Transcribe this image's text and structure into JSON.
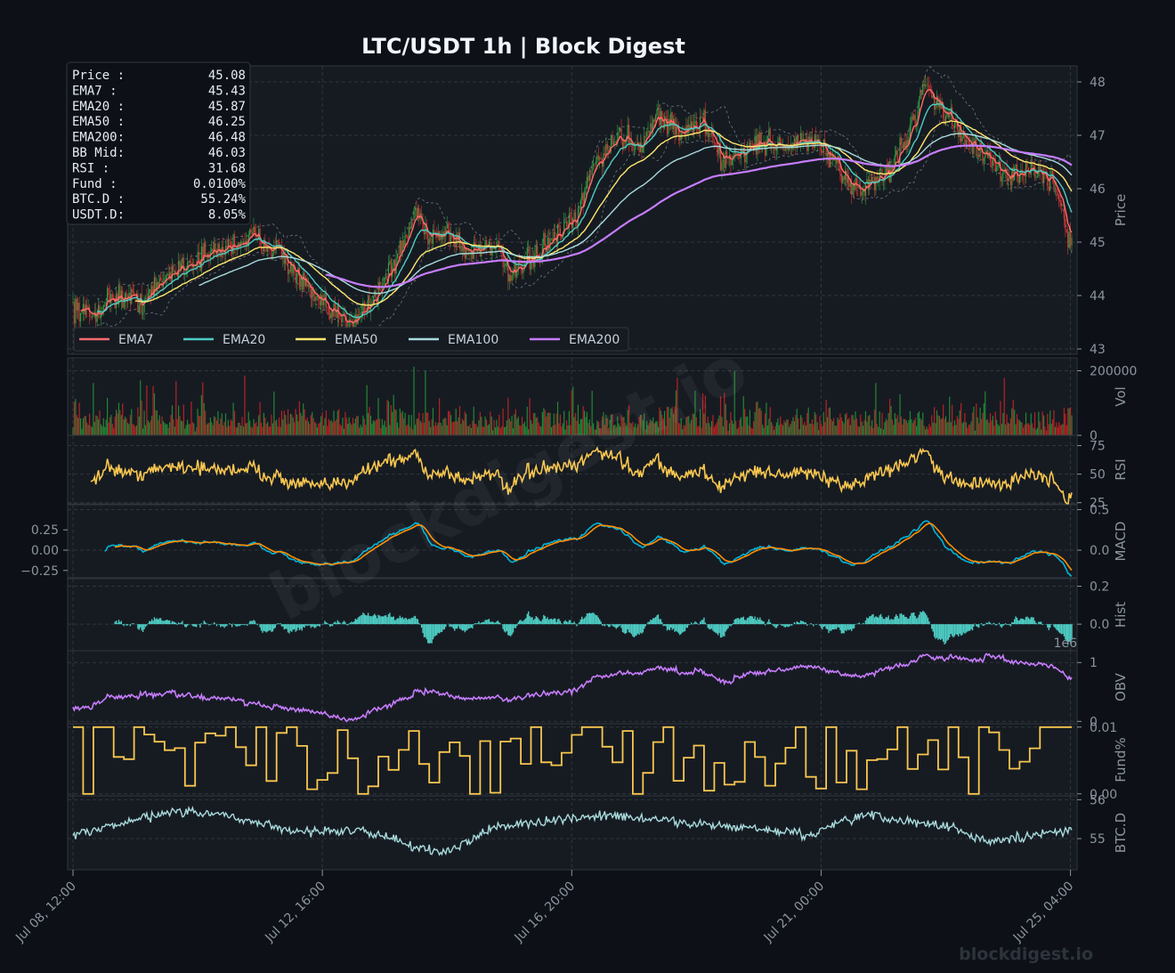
{
  "title": "LTC/USDT  1h  |  Block Digest",
  "watermark": "blockdigest.io",
  "footer_brand": "blockdigest.io",
  "colors": {
    "background": "#0d1117",
    "panel": "#161b22",
    "grid": "#30363d",
    "text": "#c9d1d9",
    "candle_up": "#2ea043",
    "candle_down": "#da3633",
    "ema7": "#ff6b6b",
    "ema20": "#4ecdc4",
    "ema50": "#ffe66d",
    "ema100": "#a8dadc",
    "ema200": "#c77dff",
    "rsi": "#f9c74f",
    "macd": "#00b4d8",
    "signal": "#ff8c00",
    "hist": "#4ecdc4",
    "obv": "#c77dff",
    "funding": "#f9c74f",
    "btcd": "#a8dadc"
  },
  "info_box": [
    {
      "label": "Price :",
      "value": "45.08"
    },
    {
      "label": "EMA7  :",
      "value": "45.43"
    },
    {
      "label": "EMA20 :",
      "value": "45.87"
    },
    {
      "label": "EMA50 :",
      "value": "46.25"
    },
    {
      "label": "EMA200:",
      "value": "46.48"
    },
    {
      "label": "BB Mid:",
      "value": "46.03"
    },
    {
      "label": "RSI   :",
      "value": "31.68"
    },
    {
      "label": "Fund  :",
      "value": "0.0100%"
    },
    {
      "label": "BTC.D :",
      "value": "55.24%"
    },
    {
      "label": "USDT.D:",
      "value": "8.05%"
    }
  ],
  "legend": [
    "EMA7",
    "EMA20",
    "EMA50",
    "EMA100",
    "EMA200"
  ],
  "x_ticks": [
    "Jul 08, 12:00",
    "Jul 12, 16:00",
    "Jul 16, 20:00",
    "Jul 21, 00:00",
    "Jul 25, 04:00"
  ],
  "chart_data": [
    {
      "type": "candlestick",
      "panel": "price",
      "ylabel": "Price",
      "ylim": [
        42.9,
        48.3
      ],
      "yticks": [
        "43",
        "44",
        "45",
        "46",
        "47",
        "48"
      ],
      "series_names": [
        "EMA7",
        "EMA20",
        "EMA50",
        "EMA100",
        "EMA200"
      ],
      "price_path": [
        [
          0,
          43.8
        ],
        [
          15,
          43.6
        ],
        [
          30,
          44.0
        ],
        [
          55,
          43.9
        ],
        [
          80,
          44.5
        ],
        [
          110,
          44.8
        ],
        [
          140,
          45.1
        ],
        [
          160,
          44.9
        ],
        [
          175,
          44.4
        ],
        [
          195,
          43.8
        ],
        [
          215,
          43.5
        ],
        [
          235,
          43.9
        ],
        [
          255,
          44.7
        ],
        [
          270,
          45.6
        ],
        [
          280,
          45.1
        ],
        [
          295,
          45.2
        ],
        [
          310,
          44.8
        ],
        [
          330,
          45.0
        ],
        [
          345,
          44.3
        ],
        [
          360,
          44.7
        ],
        [
          380,
          45.1
        ],
        [
          395,
          45.4
        ],
        [
          410,
          46.5
        ],
        [
          430,
          47.0
        ],
        [
          445,
          46.8
        ],
        [
          460,
          47.4
        ],
        [
          480,
          47.0
        ],
        [
          495,
          47.3
        ],
        [
          510,
          46.5
        ],
        [
          525,
          46.7
        ],
        [
          545,
          46.9
        ],
        [
          560,
          46.8
        ],
        [
          585,
          46.9
        ],
        [
          605,
          46.2
        ],
        [
          620,
          46.0
        ],
        [
          640,
          46.3
        ],
        [
          655,
          46.9
        ],
        [
          670,
          48.0
        ],
        [
          685,
          47.4
        ],
        [
          700,
          47.0
        ],
        [
          720,
          46.5
        ],
        [
          735,
          46.2
        ],
        [
          750,
          46.4
        ],
        [
          765,
          46.2
        ],
        [
          775,
          45.9
        ],
        [
          782,
          45.1
        ],
        [
          785,
          45.08
        ]
      ],
      "ema_start": {
        "EMA7": 6,
        "EMA20": 19,
        "EMA50": 49,
        "EMA100": 99,
        "EMA200": 199
      }
    },
    {
      "type": "bar",
      "panel": "volume",
      "ylabel": "Vol",
      "ylim": [
        0,
        240000
      ],
      "yticks": [
        "0",
        "200000"
      ]
    },
    {
      "type": "line",
      "panel": "rsi",
      "ylabel": "RSI",
      "ylim": [
        24,
        84
      ],
      "yticks": [
        "25",
        "50",
        "75"
      ]
    },
    {
      "type": "line",
      "panel": "macd",
      "ylabel": "MACD",
      "ylim": [
        -0.34,
        0.56
      ],
      "yticks_left": [
        "0.25",
        "0.00",
        "−0.25"
      ],
      "yticks_right": [
        "0.5",
        "0.0"
      ],
      "series_names": [
        "MACD",
        "Signal"
      ]
    },
    {
      "type": "bar",
      "panel": "hist",
      "ylabel": "Hist",
      "ylim": [
        -0.14,
        0.24
      ],
      "yticks": [
        "0.2",
        "0.0"
      ],
      "offset_label": "1e6"
    },
    {
      "type": "line",
      "panel": "obv",
      "ylabel": "OBV",
      "ylim": [
        -0.04,
        1.2
      ],
      "yticks": [
        "0",
        "1"
      ]
    },
    {
      "type": "step",
      "panel": "funding",
      "ylabel": "Fund%",
      "ylim": [
        -0.0003,
        0.0105
      ],
      "yticks": [
        "0.00",
        "0.01"
      ]
    },
    {
      "type": "line",
      "panel": "btcd",
      "ylabel": "BTC.D",
      "ylim": [
        54.2,
        56.1
      ],
      "yticks": [
        "55",
        "56"
      ]
    }
  ]
}
